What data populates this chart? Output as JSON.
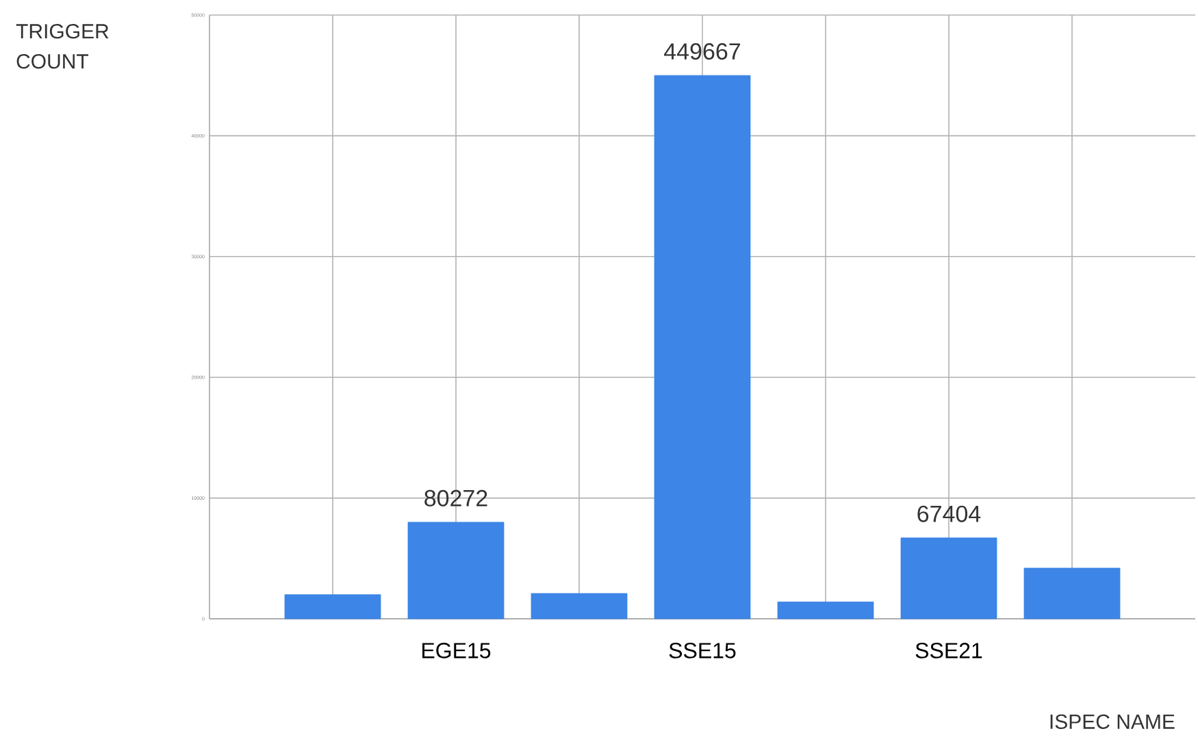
{
  "chart_data": {
    "type": "bar",
    "ylabel": "TRIGGER COUNT",
    "xlabel": "ISPEC NAME",
    "categories": [
      null,
      "EGE15",
      null,
      "SSE15",
      null,
      "SSE21",
      null
    ],
    "values": [
      2000,
      8000,
      2100,
      45000,
      1400,
      6700,
      4200
    ],
    "color": "#3d85e6",
    "ylim": [
      0,
      50000
    ],
    "yticks": [
      0,
      10000,
      20000,
      30000,
      40000,
      50000
    ],
    "grid": true,
    "annotations": [
      "80272",
      "449667",
      "67404"
    ]
  }
}
